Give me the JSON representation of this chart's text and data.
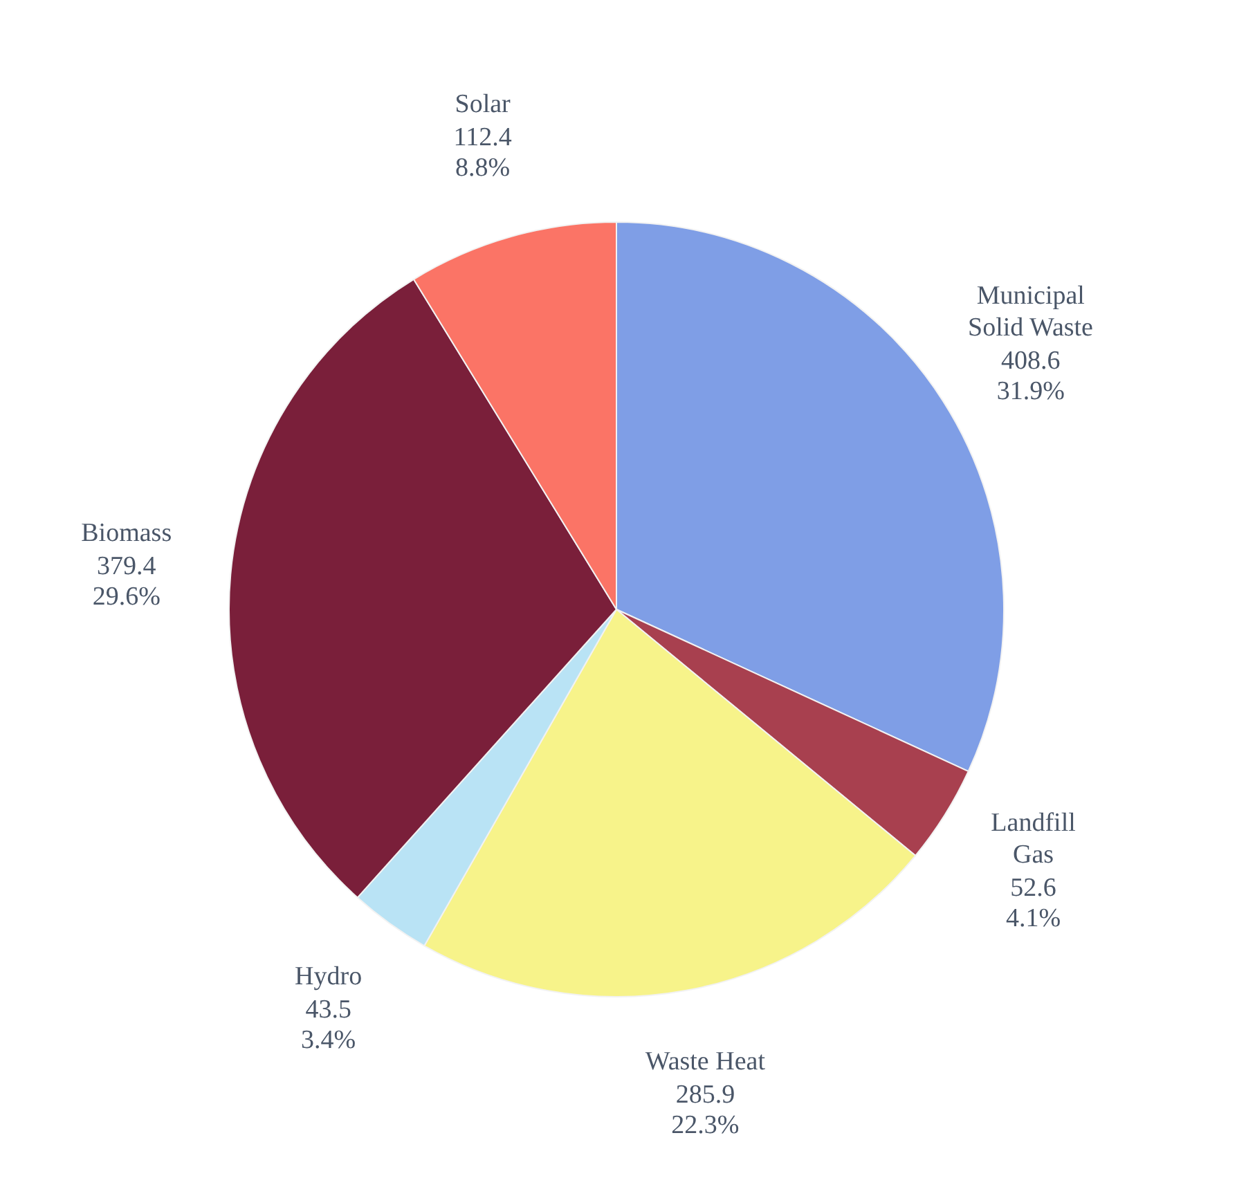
{
  "chart_data": {
    "type": "pie",
    "categories": [
      "Municipal Solid Waste",
      "Landfill Gas",
      "Waste Heat",
      "Hydro",
      "Biomass",
      "Solar"
    ],
    "values": [
      408.6,
      52.6,
      285.9,
      43.5,
      379.4,
      112.4
    ],
    "colors": [
      "#7f9ee6",
      "#a8404f",
      "#f7f38a",
      "#b9e3f5",
      "#7a1f3a",
      "#fb7466"
    ],
    "value_labels": [
      "408.6\n31.9%",
      "52.6\n4.1%",
      "285.9\n22.3%",
      "43.5\n3.4%",
      "379.4\n29.6%",
      "112.4\n8.8%"
    ]
  }
}
